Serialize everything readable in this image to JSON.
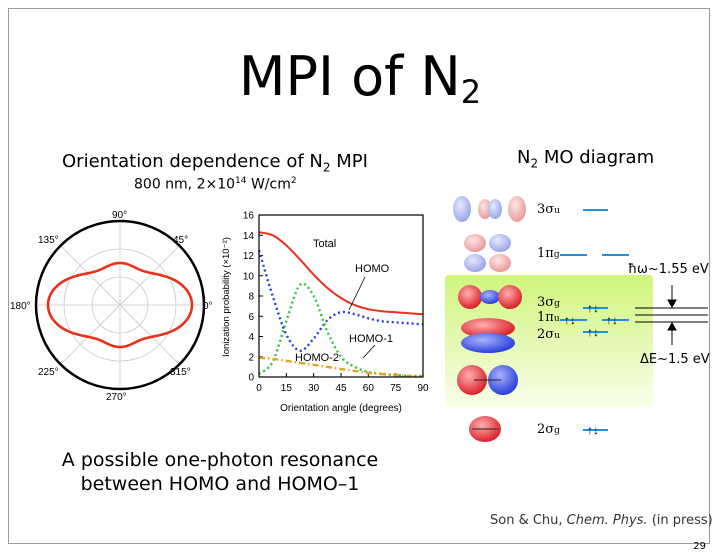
{
  "slide": {
    "title_main": "MPI of N",
    "title_sub": "2",
    "left_heading_a": "Orientation dependence of N",
    "left_heading_sub": "2",
    "left_heading_b": " MPI",
    "conditions_a": "800 nm, 2×10",
    "conditions_exp": "14",
    "conditions_b": " W/cm",
    "conditions_exp2": "2",
    "right_heading_a": "N",
    "right_heading_sub": "2",
    "right_heading_b": " MO diagram",
    "caption_line1": "A possible one-photon resonance",
    "caption_line2": "between HOMO and HOMO–1",
    "citation_a": "Son & Chu, ",
    "citation_journal": "Chem. Phys.",
    "citation_b": " (in press)",
    "page_number": "29"
  },
  "polar_plot": {
    "angle_labels": [
      "90°",
      "45°",
      "0°",
      "315°",
      "270°",
      "225°",
      "180°",
      "135°"
    ],
    "curve_color": "#e8321e"
  },
  "chart_data": {
    "type": "line",
    "xlabel": "Orientation angle (degrees)",
    "ylabel": "Ionization probability (×10⁻²)",
    "xlim": [
      0,
      90
    ],
    "ylim": [
      0,
      16
    ],
    "x_ticks": [
      "0",
      "15",
      "30",
      "45",
      "60",
      "75",
      "90"
    ],
    "y_ticks": [
      "0",
      "2",
      "4",
      "6",
      "8",
      "10",
      "12",
      "14",
      "16"
    ],
    "x": [
      0,
      7.5,
      15,
      22.5,
      30,
      37.5,
      45,
      52.5,
      60,
      67.5,
      75,
      82.5,
      90
    ],
    "series": [
      {
        "name": "Total",
        "color": "#e8321e",
        "dash": "solid",
        "values": [
          14.3,
          14.0,
          13.0,
          11.6,
          10.1,
          8.8,
          7.8,
          7.1,
          6.7,
          6.5,
          6.4,
          6.3,
          6.2
        ]
      },
      {
        "name": "HOMO",
        "color": "#2a3fd8",
        "dash": "dot",
        "values": [
          12.5,
          8.0,
          4.2,
          2.6,
          3.8,
          5.6,
          6.4,
          6.2,
          5.8,
          5.5,
          5.4,
          5.3,
          5.2
        ]
      },
      {
        "name": "HOMO-1",
        "color": "#2fc244",
        "dash": "dot",
        "values": [
          0.3,
          1.5,
          5.5,
          9.1,
          8.0,
          4.5,
          2.0,
          1.0,
          0.5,
          0.3,
          0.2,
          0.1,
          0.1
        ]
      },
      {
        "name": "HOMO-2",
        "color": "#e8a21e",
        "dash": "dashdot",
        "values": [
          1.9,
          1.8,
          1.6,
          1.4,
          1.2,
          1.0,
          0.8,
          0.6,
          0.4,
          0.3,
          0.2,
          0.1,
          0.1
        ]
      }
    ]
  },
  "mo_diagram": {
    "levels": [
      {
        "label_main": "3σ",
        "label_sub": "u"
      },
      {
        "label_main": "1π",
        "label_sub": "g"
      },
      {
        "label_main": "3σ",
        "label_sub": "g"
      },
      {
        "label_main": "1π",
        "label_sub": "u"
      },
      {
        "label_main": "2σ",
        "label_sub": "u"
      },
      {
        "label_main": "2σ",
        "label_sub": "g"
      }
    ],
    "photon_label": "ħω~1.55 eV",
    "gap_label": "ΔE~1.5 eV",
    "electron_pair": "↑↓",
    "level_color": "#1f8fe0",
    "lobe_positive": "#d9212a",
    "lobe_negative": "#2a3fd8"
  }
}
